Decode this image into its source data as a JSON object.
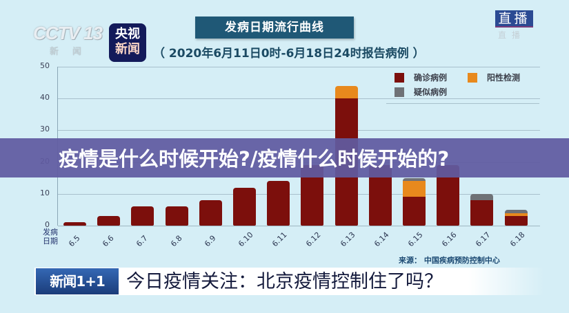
{
  "branding": {
    "cctv_logo": "CCTV 13",
    "cctv_sub": "新闻",
    "app_logo_line1": "央视",
    "app_logo_line2": "新闻",
    "live_badge": "直播",
    "live_sub": "直播"
  },
  "header": {
    "title": "发病日期流行曲线",
    "subtitle": "（ 2020年6月11日0时-6月18日24时报告病例 ）"
  },
  "overlay": {
    "headline": "疫情是什么时候开始?/疫情什么时侯开始的?"
  },
  "source": "来源：  中国疾病预防控制中心",
  "lower_third": {
    "program": "新闻1+1",
    "headline": "今日疫情关注：北京疫情控制住了吗？"
  },
  "colors": {
    "confirmed": "#7c0f0c",
    "positive": "#e8891d",
    "suspected": "#6f7176",
    "background": "#d5eef6",
    "title_box": "#1f5876",
    "overlay": "#605aa0"
  },
  "chart_data": {
    "type": "bar",
    "stacked": true,
    "title": "发病日期流行曲线",
    "subtitle": "（2020年6月11日0时-6月18日24时报告病例）",
    "xlabel": "发病日期",
    "ylabel": "",
    "ylim": [
      0,
      50
    ],
    "yticks": [
      0,
      10,
      20,
      30,
      40,
      50
    ],
    "grid": true,
    "legend_position": "top-right",
    "categories": [
      "6.5",
      "6.6",
      "6.7",
      "6.8",
      "6.9",
      "6.10",
      "6.11",
      "6.12",
      "6.13",
      "6.14",
      "6.15",
      "6.16",
      "6.17",
      "6.18"
    ],
    "series": [
      {
        "name": "确诊病例",
        "color": "#7c0f0c",
        "values": [
          1,
          3,
          6,
          6,
          8,
          12,
          14,
          19,
          40,
          19,
          9,
          19,
          8,
          3
        ]
      },
      {
        "name": "阳性检测",
        "color": "#e8891d",
        "values": [
          0,
          0,
          0,
          0,
          0,
          0,
          0,
          0,
          4,
          0,
          5,
          0,
          0,
          1
        ]
      },
      {
        "name": "疑似病例",
        "color": "#6f7176",
        "values": [
          0,
          0,
          0,
          0,
          0,
          0,
          0,
          0,
          0,
          0,
          1,
          0,
          2,
          1
        ]
      }
    ],
    "source": "来源：中国疾病预防控制中心"
  },
  "axis": {
    "x_label_line1": "发病",
    "x_label_line2": "日期"
  }
}
